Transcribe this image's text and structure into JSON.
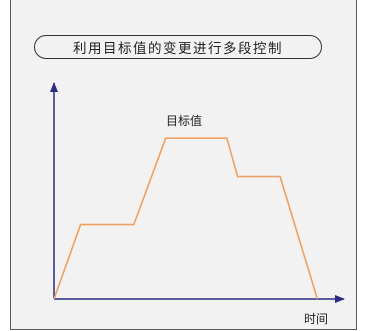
{
  "chart_data": {
    "type": "line",
    "title": "利用目标值的变更进行多段控制",
    "ylabel": "目标值",
    "xlabel": "时间",
    "x": [
      0,
      1,
      3,
      4.2,
      6.5,
      6.9,
      8.5,
      9.9
    ],
    "y": [
      0,
      3.1,
      3.1,
      6.7,
      6.7,
      5.1,
      5.1,
      0
    ],
    "xlim": [
      0,
      10.9
    ],
    "ylim": [
      0,
      9.0
    ],
    "grid": false,
    "line_color": "#f0a060",
    "axis_color": "#2b2d80"
  }
}
